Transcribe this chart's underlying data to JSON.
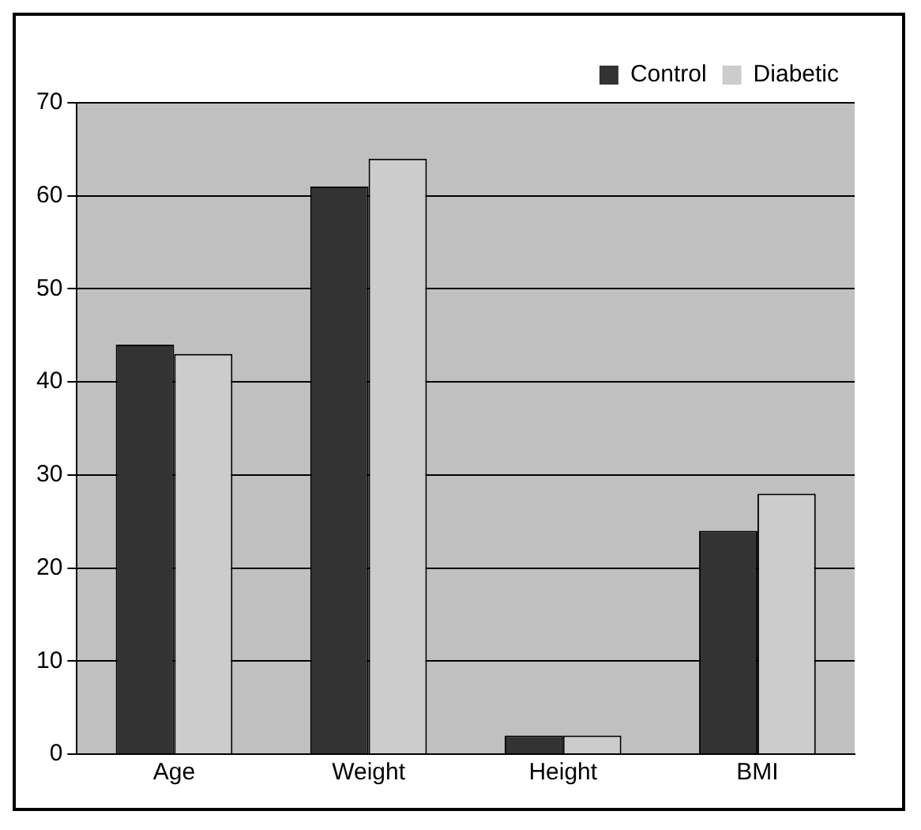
{
  "chart_data": {
    "type": "bar",
    "categories": [
      "Age",
      "Weight",
      "Height",
      "BMI"
    ],
    "series": [
      {
        "name": "Control",
        "color": "#333333",
        "values": [
          44,
          61,
          2,
          24
        ]
      },
      {
        "name": "Diabetic",
        "color": "#cccccc",
        "values": [
          43,
          64,
          2,
          28
        ]
      }
    ],
    "ylim": [
      0,
      70
    ],
    "yticks": [
      0,
      10,
      20,
      30,
      40,
      50,
      60,
      70
    ],
    "grid": "y",
    "legend": "top right"
  }
}
